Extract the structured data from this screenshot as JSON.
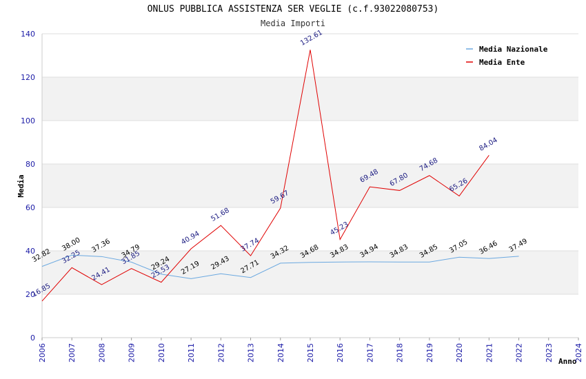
{
  "chart_data": {
    "type": "line",
    "title": "ONLUS PUBBLICA ASSISTENZA SER VEGLIE (c.f.93022080753)",
    "subtitle": "Media Importi",
    "xlabel": "Anno",
    "ylabel": "Media",
    "ylim": [
      0,
      140
    ],
    "yticks": [
      0,
      20,
      40,
      60,
      80,
      100,
      120,
      140
    ],
    "x": [
      2006,
      2007,
      2008,
      2009,
      2010,
      2011,
      2012,
      2013,
      2014,
      2015,
      2016,
      2017,
      2018,
      2019,
      2020,
      2021,
      2022,
      2023,
      2024
    ],
    "legend_position": "top-right",
    "grid": "horizontal bands",
    "series": [
      {
        "name": "Media Nazionale",
        "color": "#6aa8e0",
        "x": [
          2006,
          2007,
          2008,
          2009,
          2010,
          2011,
          2012,
          2013,
          2014,
          2015,
          2016,
          2017,
          2018,
          2019,
          2020,
          2021,
          2022
        ],
        "values": [
          32.82,
          38.0,
          37.36,
          34.79,
          29.24,
          27.19,
          29.43,
          27.71,
          34.32,
          34.68,
          34.83,
          34.94,
          34.83,
          34.85,
          37.05,
          36.46,
          37.49
        ],
        "labels": [
          "32.82",
          "38.00",
          "37.36",
          "34.79",
          "29.24",
          "27.19",
          "29.43",
          "27.71",
          "34.32",
          "34.68",
          "34.83",
          "34.94",
          "34.83",
          "34.85",
          "37.05",
          "36.46",
          "37.49"
        ]
      },
      {
        "name": "Media Ente",
        "color": "#e00000",
        "x": [
          2006,
          2007,
          2008,
          2009,
          2010,
          2011,
          2012,
          2013,
          2014,
          2015,
          2016,
          2017,
          2018,
          2019,
          2020,
          2021
        ],
        "values": [
          16.85,
          32.25,
          24.41,
          31.85,
          25.53,
          40.94,
          51.68,
          37.74,
          59.67,
          132.61,
          45.23,
          69.48,
          67.8,
          74.68,
          65.26,
          84.04
        ],
        "labels": [
          "16.85",
          "32.25",
          "24.41",
          "31.85",
          "25.53",
          "40.94",
          "51.68",
          "37.74",
          "59.67",
          "132.61",
          "45.23",
          "69.48",
          "67.80",
          "74.68",
          "65.26",
          "84.04"
        ]
      }
    ]
  }
}
